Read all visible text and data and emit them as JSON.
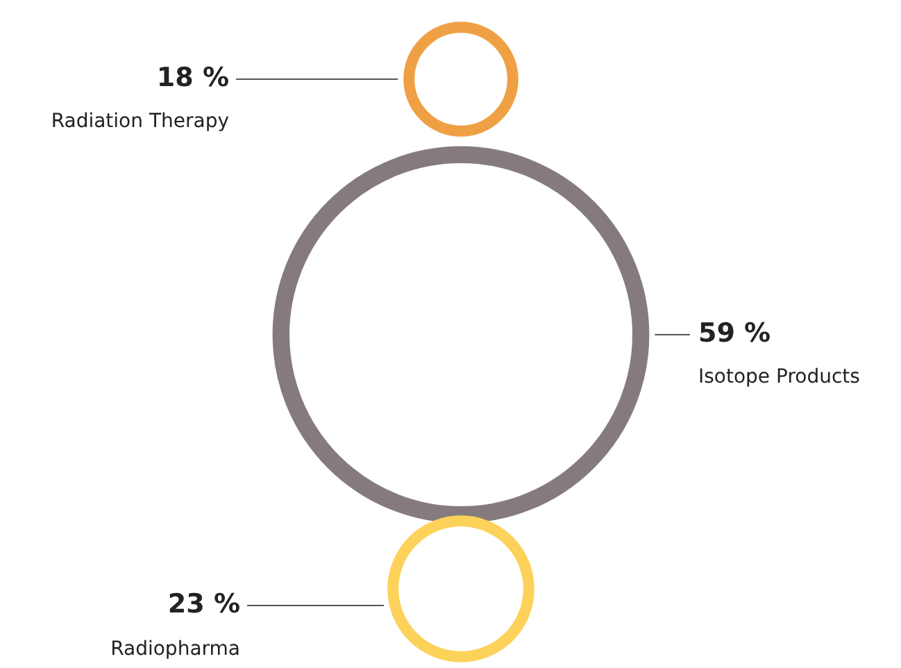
{
  "chart_data": {
    "type": "other",
    "categories": [
      "Radiation Therapy",
      "Isotope Products",
      "Radiopharma"
    ],
    "values": [
      18,
      59,
      23
    ],
    "value_labels": [
      "18 %",
      "59 %",
      "23 %"
    ],
    "colors": [
      "#f0a044",
      "#857b7f",
      "#fdd25a"
    ]
  }
}
